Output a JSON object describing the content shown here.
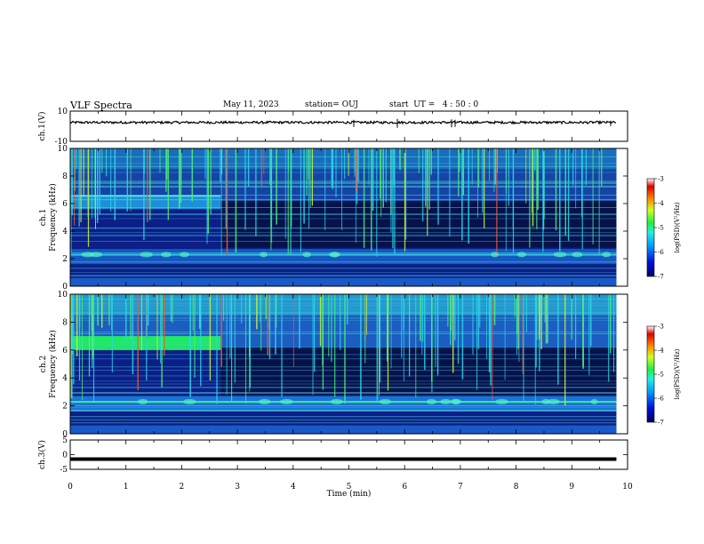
{
  "header": {
    "title": "VLF Spectra",
    "date": "May 11, 2023",
    "station": "station= OUJ",
    "start": "start  UT =   4 : 50 : 0"
  },
  "colors": {
    "spectrogram_bg": "#0a1a6e",
    "emission_band": "#22e0e0",
    "waveform": "#000000"
  },
  "chart_data": [
    {
      "type": "line",
      "name": "ch1-waveform",
      "ylabel": "ch.1(V)",
      "ylim": [
        -10,
        10
      ],
      "yticks": [
        10,
        -10
      ],
      "x": [
        0,
        9.8
      ],
      "baseline": 2.5
    },
    {
      "type": "heatmap",
      "name": "ch1-spectrogram",
      "ylabel": "ch.1\nFrequency (kHz)",
      "ylim": [
        0,
        10
      ],
      "yticks": [
        0,
        2,
        4,
        6,
        8,
        10
      ],
      "xlim": [
        0,
        10
      ],
      "data_end": 9.8,
      "band_transition_min": 2.7,
      "lowband_khz": [
        1.5,
        2.7
      ],
      "colorbar": {
        "label": "log(PSD)(V²/Hz)",
        "ticks": [
          "-3",
          "-4",
          "-5",
          "-6",
          "-7"
        ],
        "range": [
          -7,
          -3
        ]
      }
    },
    {
      "type": "heatmap",
      "name": "ch2-spectrogram",
      "ylabel": "ch.2\nFrequency (kHz)",
      "ylim": [
        0,
        10
      ],
      "yticks": [
        0,
        2,
        4,
        6,
        8,
        10
      ],
      "xlim": [
        0,
        10
      ],
      "data_end": 9.8,
      "band_transition_min": 2.7,
      "early_band_khz": [
        6.0,
        7.0
      ],
      "colorbar": {
        "label": "log(PSD)(V²/Hz)",
        "ticks": [
          "-3",
          "-4",
          "-5",
          "-6",
          "-7"
        ],
        "range": [
          -7,
          -3
        ]
      }
    },
    {
      "type": "line",
      "name": "ch3-waveform",
      "ylabel": "ch.3(V)",
      "ylim": [
        -5,
        5
      ],
      "yticks": [
        5,
        0,
        -5
      ],
      "x": [
        0,
        9.8
      ],
      "level": -1.5
    }
  ],
  "xaxis": {
    "label": "Time (min)",
    "ticks": [
      "0",
      "1",
      "2",
      "3",
      "4",
      "5",
      "6",
      "7",
      "8",
      "9",
      "10"
    ]
  }
}
